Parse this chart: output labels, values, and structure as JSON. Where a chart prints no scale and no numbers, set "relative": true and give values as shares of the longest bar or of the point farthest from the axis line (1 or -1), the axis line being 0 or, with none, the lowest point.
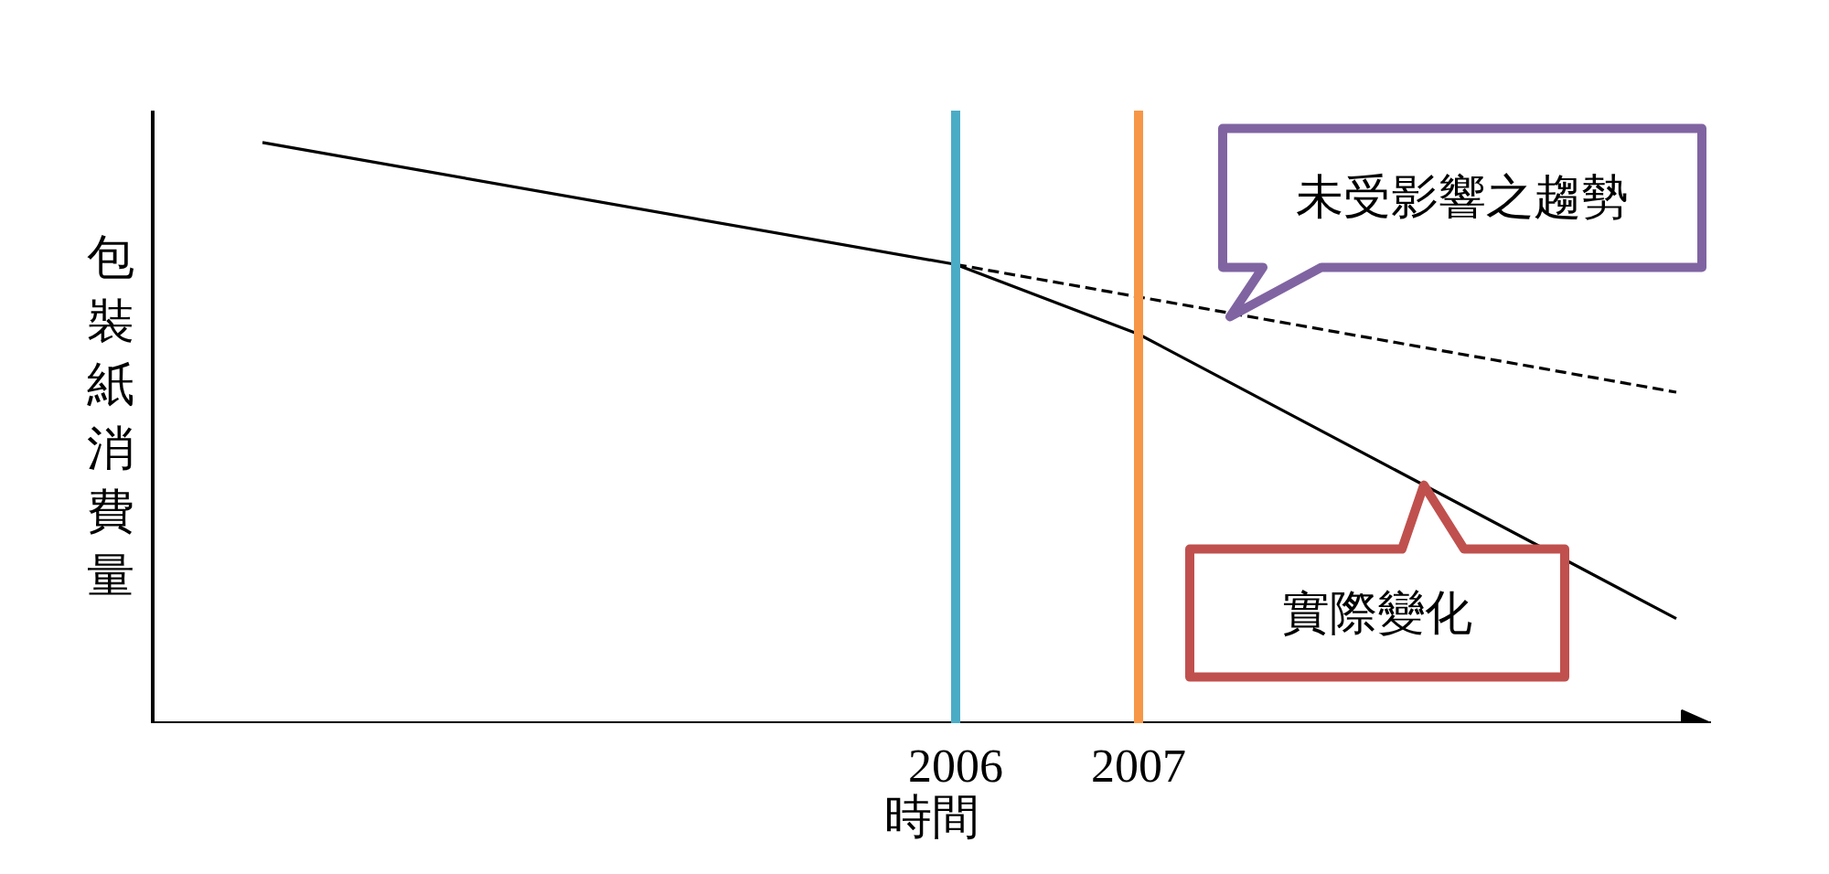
{
  "chart_data": {
    "type": "line",
    "relative": true,
    "xlabel": "時間",
    "ylabel": "包裝紙消費量",
    "xlim": [
      2001.61,
      2010.13
    ],
    "xticks": [
      2006,
      2007
    ],
    "marker": "none",
    "series": [
      {
        "color": "#000000",
        "line_style": "solid",
        "x": [
          2002.21,
          2006,
          2007,
          2009.94
        ],
        "values": [
          1,
          0.79,
          0.67,
          0.18
        ]
      },
      {
        "color": "#000000",
        "line_style": "dashed",
        "x": [
          2006,
          2009.94
        ],
        "values": [
          0.79,
          0.57
        ]
      }
    ],
    "ref_lines": [
      {
        "axis": "x",
        "value": 2006,
        "color": "#4bacc6"
      },
      {
        "axis": "x",
        "value": 2007,
        "color": "#f79646"
      }
    ],
    "annotations": [
      {
        "text": "未受影響之趨勢",
        "x": 2007.5,
        "y": 0.7
      },
      {
        "text": "實際變化",
        "x": 2008.56,
        "y": 0.41
      }
    ]
  }
}
